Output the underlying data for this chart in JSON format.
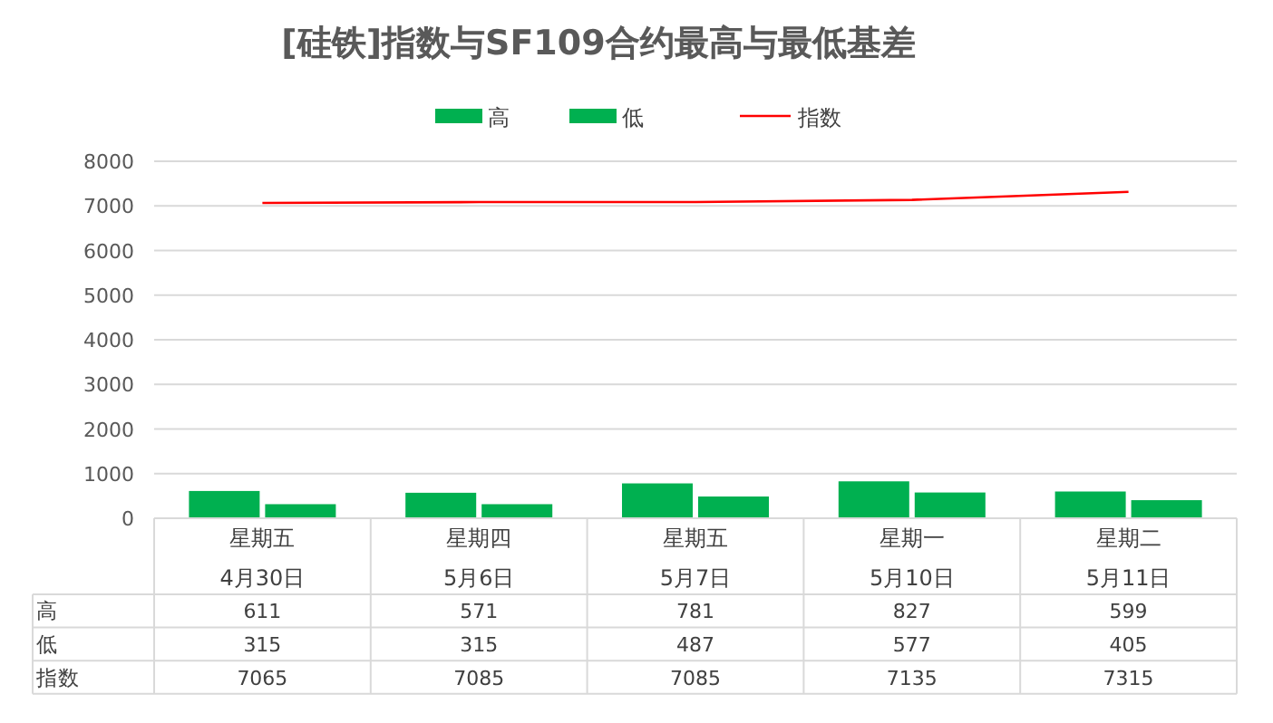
{
  "chart_data": {
    "type": "bar",
    "title": "[硅铁]指数与SF109合约最高与最低基差",
    "categories": [
      "星期五\n4月30日",
      "星期四\n5月6日",
      "星期五\n5月7日",
      "星期一\n5月10日",
      "星期二\n5月11日"
    ],
    "series": [
      {
        "name": "高",
        "color": "#00b050",
        "values": [
          611,
          571,
          781,
          827,
          599
        ]
      },
      {
        "name": "低",
        "color": "#00b050",
        "values": [
          315,
          315,
          487,
          577,
          405
        ]
      },
      {
        "name": "指数",
        "type": "line",
        "color": "#ff0000",
        "values": [
          7065,
          7085,
          7085,
          7135,
          7315
        ]
      }
    ],
    "ylim": [
      0,
      8000
    ],
    "yticks": [
      0,
      1000,
      2000,
      3000,
      4000,
      5000,
      6000,
      7000,
      8000
    ],
    "grid": "y",
    "legend": "top",
    "data_labels": true,
    "marker": "none",
    "line_style": "solid"
  }
}
